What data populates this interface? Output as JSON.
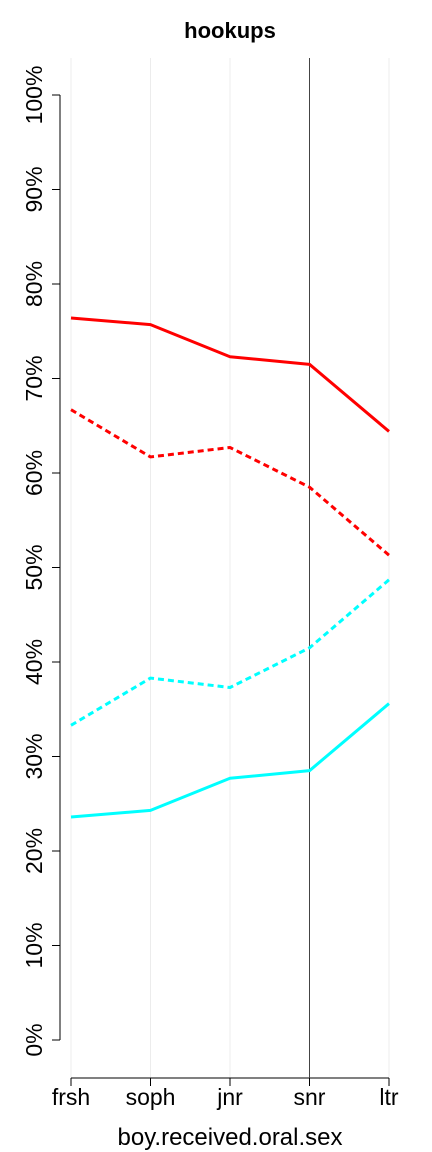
{
  "chart_data": {
    "type": "line",
    "title": "hookups",
    "xlabel": "boy.received.oral.sex",
    "ylabel": "",
    "categories": [
      "frsh",
      "soph",
      "jnr",
      "snr",
      "ltr"
    ],
    "ylim": [
      0,
      100
    ],
    "yticks": [
      0,
      10,
      20,
      30,
      40,
      50,
      60,
      70,
      80,
      90,
      100
    ],
    "ytick_labels": [
      "0%",
      "10%",
      "20%",
      "30%",
      "40%",
      "50%",
      "60%",
      "70%",
      "80%",
      "90%",
      "100%"
    ],
    "vertical_reference_category": "snr",
    "grid": "vertical",
    "series": [
      {
        "color": "#ff0000",
        "style": "solid",
        "values": [
          76.4,
          75.7,
          72.3,
          71.5,
          64.4
        ]
      },
      {
        "color": "#ff0000",
        "style": "dashed",
        "values": [
          66.7,
          61.7,
          62.7,
          58.5,
          51.3
        ]
      },
      {
        "color": "#00ffff",
        "style": "dashed",
        "values": [
          33.3,
          38.3,
          37.3,
          41.5,
          48.7
        ]
      },
      {
        "color": "#00ffff",
        "style": "solid",
        "values": [
          23.6,
          24.3,
          27.7,
          28.5,
          35.6
        ]
      }
    ]
  }
}
